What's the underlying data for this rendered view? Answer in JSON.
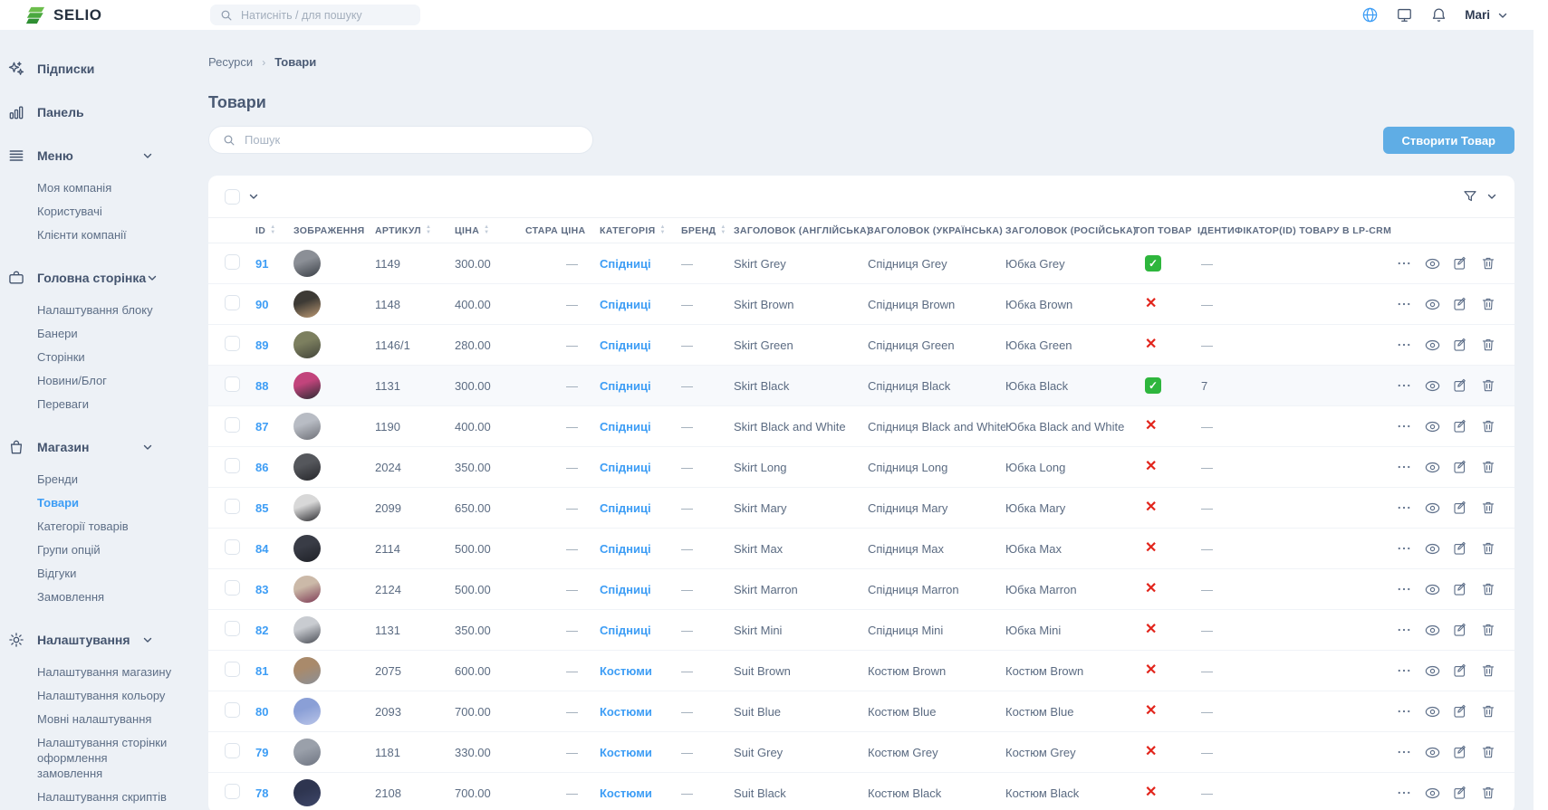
{
  "topbar": {
    "logo_text": "SELIO",
    "search_placeholder": "Натисніть / для пошуку",
    "user_name": "Mari",
    "accent_color": "#3d9df5"
  },
  "sidebar": {
    "sections": [
      {
        "label": "Підписки",
        "icon": "sparkles-icon",
        "expandable": false,
        "children": []
      },
      {
        "label": "Панель",
        "icon": "bar-chart-icon",
        "expandable": false,
        "children": []
      },
      {
        "label": "Меню",
        "icon": "menu-icon",
        "expandable": true,
        "children": [
          "Моя компанія",
          "Користувачі",
          "Клієнти компанії"
        ]
      },
      {
        "label": "Головна сторінка",
        "icon": "briefcase-icon",
        "expandable": true,
        "children": [
          "Налаштування блоку",
          "Банери",
          "Сторінки",
          "Новини/Блог",
          "Переваги"
        ]
      },
      {
        "label": "Магазин",
        "icon": "bag-icon",
        "expandable": true,
        "active_child": "Товари",
        "children": [
          "Бренди",
          "Товари",
          "Категорії товарів",
          "Групи опцій",
          "Відгуки",
          "Замовлення"
        ]
      },
      {
        "label": "Налаштування",
        "icon": "gear-icon",
        "expandable": true,
        "children": [
          "Налаштування магазину",
          "Налаштування кольору",
          "Мовні налаштування",
          "Налаштування сторінки оформлення замовлення",
          "Налаштування скриптів"
        ]
      }
    ]
  },
  "page": {
    "breadcrumb": [
      "Ресурси",
      "Товари"
    ],
    "title": "Товари",
    "search_placeholder": "Пошук",
    "create_button": "Створити Товар"
  },
  "table": {
    "columns": [
      {
        "key": "id",
        "label": "ID",
        "sortable": true
      },
      {
        "key": "image",
        "label": "ЗОБРАЖЕННЯ",
        "sortable": false
      },
      {
        "key": "article",
        "label": "АРТИКУЛ",
        "sortable": true
      },
      {
        "key": "price",
        "label": "ЦІНА",
        "sortable": true
      },
      {
        "key": "old_price",
        "label": "СТАРА ЦІНА",
        "sortable": false
      },
      {
        "key": "category",
        "label": "КАТЕГОРІЯ",
        "sortable": true
      },
      {
        "key": "brand",
        "label": "БРЕНД",
        "sortable": true
      },
      {
        "key": "title_en",
        "label": "ЗАГОЛОВОК (АНГЛІЙСЬКА)",
        "sortable": false
      },
      {
        "key": "title_uk",
        "label": "ЗАГОЛОВОК (УКРАЇНСЬКА)",
        "sortable": false
      },
      {
        "key": "title_ru",
        "label": "ЗАГОЛОВОК (РОСІЙСЬКА)",
        "sortable": false
      },
      {
        "key": "top",
        "label": "ТОП ТОВАР",
        "sortable": false
      },
      {
        "key": "lpcrm",
        "label": "ІДЕНТИФІКАТОР(ID) ТОВАРУ В LP-CRM",
        "sortable": false
      }
    ],
    "status_colors": {
      "top_yes": "#2eb63d",
      "top_no": "#e2241b"
    },
    "rows": [
      {
        "id": "91",
        "article": "1149",
        "price": "300.00",
        "old_price": "—",
        "category": "Спідниці",
        "brand": "—",
        "title_en": "Skirt Grey",
        "title_uk": "Спідниця Grey",
        "title_ru": "Юбка Grey",
        "top": true,
        "lpcrm": "—",
        "highlighted": false,
        "avatar": [
          "#8b8f96",
          "#3a3f46"
        ]
      },
      {
        "id": "90",
        "article": "1148",
        "price": "400.00",
        "old_price": "—",
        "category": "Спідниці",
        "brand": "—",
        "title_en": "Skirt Brown",
        "title_uk": "Спідниця Brown",
        "title_ru": "Юбка Brown",
        "top": false,
        "lpcrm": "—",
        "highlighted": false,
        "avatar": [
          "#3d3a35",
          "#bd9a74"
        ]
      },
      {
        "id": "89",
        "article": "1146/1",
        "price": "280.00",
        "old_price": "—",
        "category": "Спідниці",
        "brand": "—",
        "title_en": "Skirt Green",
        "title_uk": "Спідниця Green",
        "title_ru": "Юбка Green",
        "top": false,
        "lpcrm": "—",
        "highlighted": false,
        "avatar": [
          "#7c7f5f",
          "#43453a"
        ]
      },
      {
        "id": "88",
        "article": "1131",
        "price": "300.00",
        "old_price": "—",
        "category": "Спідниці",
        "brand": "—",
        "title_en": "Skirt Black",
        "title_uk": "Спідниця Black",
        "title_ru": "Юбка Black",
        "top": true,
        "lpcrm": "7",
        "highlighted": true,
        "avatar": [
          "#c2447c",
          "#2b2b33"
        ]
      },
      {
        "id": "87",
        "article": "1190",
        "price": "400.00",
        "old_price": "—",
        "category": "Спідниці",
        "brand": "—",
        "title_en": "Skirt Black and White",
        "title_uk": "Спідниця Black and White",
        "title_ru": "Юбка Black and White",
        "top": false,
        "lpcrm": "—",
        "highlighted": false,
        "avatar": [
          "#b8bcc4",
          "#6e7077"
        ]
      },
      {
        "id": "86",
        "article": "2024",
        "price": "350.00",
        "old_price": "—",
        "category": "Спідниці",
        "brand": "—",
        "title_en": "Skirt Long",
        "title_uk": "Спідниця Long",
        "title_ru": "Юбка Long",
        "top": false,
        "lpcrm": "—",
        "highlighted": false,
        "avatar": [
          "#55575c",
          "#26272b"
        ]
      },
      {
        "id": "85",
        "article": "2099",
        "price": "650.00",
        "old_price": "—",
        "category": "Спідниці",
        "brand": "—",
        "title_en": "Skirt Mary",
        "title_uk": "Спідниця Mary",
        "title_ru": "Юбка Mary",
        "top": false,
        "lpcrm": "—",
        "highlighted": false,
        "avatar": [
          "#d8d8d8",
          "#2c2c30"
        ]
      },
      {
        "id": "84",
        "article": "2114",
        "price": "500.00",
        "old_price": "—",
        "category": "Спідниці",
        "brand": "—",
        "title_en": "Skirt Max",
        "title_uk": "Спідниця Max",
        "title_ru": "Юбка Max",
        "top": false,
        "lpcrm": "—",
        "highlighted": false,
        "avatar": [
          "#393c46",
          "#1f2127"
        ]
      },
      {
        "id": "83",
        "article": "2124",
        "price": "500.00",
        "old_price": "—",
        "category": "Спідниці",
        "brand": "—",
        "title_en": "Skirt Marron",
        "title_uk": "Спідниця Marron",
        "title_ru": "Юбка Marron",
        "top": false,
        "lpcrm": "—",
        "highlighted": false,
        "avatar": [
          "#cbb9a8",
          "#7e3b55"
        ]
      },
      {
        "id": "82",
        "article": "1131",
        "price": "350.00",
        "old_price": "—",
        "category": "Спідниці",
        "brand": "—",
        "title_en": "Skirt Mini",
        "title_uk": "Спідниця Mini",
        "title_ru": "Юбка Mini",
        "top": false,
        "lpcrm": "—",
        "highlighted": false,
        "avatar": [
          "#c9ccd1",
          "#4a4d55"
        ]
      },
      {
        "id": "81",
        "article": "2075",
        "price": "600.00",
        "old_price": "—",
        "category": "Костюми",
        "brand": "—",
        "title_en": "Suit Brown",
        "title_uk": "Костюм Brown",
        "title_ru": "Костюм Brown",
        "top": false,
        "lpcrm": "—",
        "highlighted": false,
        "avatar": [
          "#a98a6b",
          "#8b8f96"
        ]
      },
      {
        "id": "80",
        "article": "2093",
        "price": "700.00",
        "old_price": "—",
        "category": "Костюми",
        "brand": "—",
        "title_en": "Suit Blue",
        "title_uk": "Костюм Blue",
        "title_ru": "Костюм Blue",
        "top": false,
        "lpcrm": "—",
        "highlighted": false,
        "avatar": [
          "#8a9fd6",
          "#b9c4e8"
        ]
      },
      {
        "id": "79",
        "article": "1181",
        "price": "330.00",
        "old_price": "—",
        "category": "Костюми",
        "brand": "—",
        "title_en": "Suit Grey",
        "title_uk": "Костюм Grey",
        "title_ru": "Костюм Grey",
        "top": false,
        "lpcrm": "—",
        "highlighted": false,
        "avatar": [
          "#9aa0aa",
          "#6f7582"
        ]
      },
      {
        "id": "78",
        "article": "2108",
        "price": "700.00",
        "old_price": "—",
        "category": "Костюми",
        "brand": "—",
        "title_en": "Suit Black",
        "title_uk": "Костюм Black",
        "title_ru": "Костюм Black",
        "top": false,
        "lpcrm": "—",
        "highlighted": false,
        "avatar": [
          "#2e3550",
          "#3e4668"
        ]
      }
    ]
  }
}
